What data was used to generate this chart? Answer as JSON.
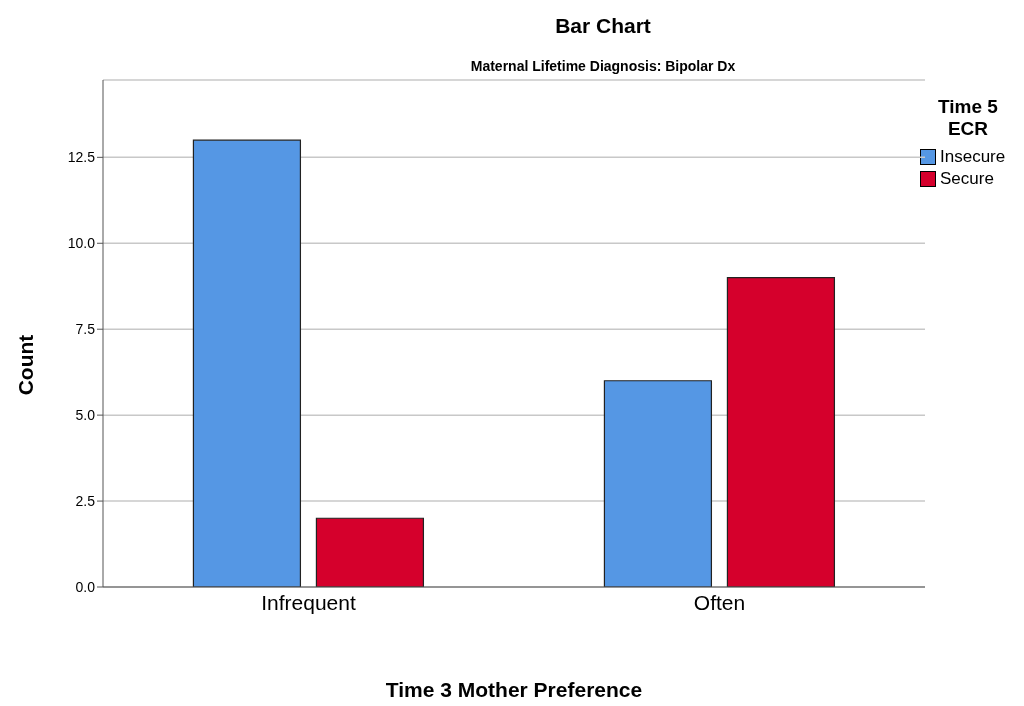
{
  "chart_data": {
    "type": "bar",
    "title": "Bar Chart",
    "subtitle": "Maternal Lifetime Diagnosis: Bipolar Dx",
    "xlabel": "Time 3 Mother Preference",
    "ylabel": "Count",
    "legend_title": "Time 5 ECR",
    "categories": [
      "Infrequent",
      "Often"
    ],
    "series": [
      {
        "name": "Insecure",
        "color": "#5597e4",
        "values": [
          13,
          6
        ]
      },
      {
        "name": "Secure",
        "color": "#d5002c",
        "values": [
          2,
          9
        ]
      }
    ],
    "ylim": [
      0,
      14.75
    ],
    "yticks": [
      {
        "value": 0,
        "label": "0.0"
      },
      {
        "value": 2.5,
        "label": "2.5"
      },
      {
        "value": 5,
        "label": "5.0"
      },
      {
        "value": 7.5,
        "label": "7.5"
      },
      {
        "value": 10,
        "label": "10.0"
      },
      {
        "value": 12.5,
        "label": "12.5"
      }
    ],
    "grid": "y",
    "legend": "top right"
  }
}
